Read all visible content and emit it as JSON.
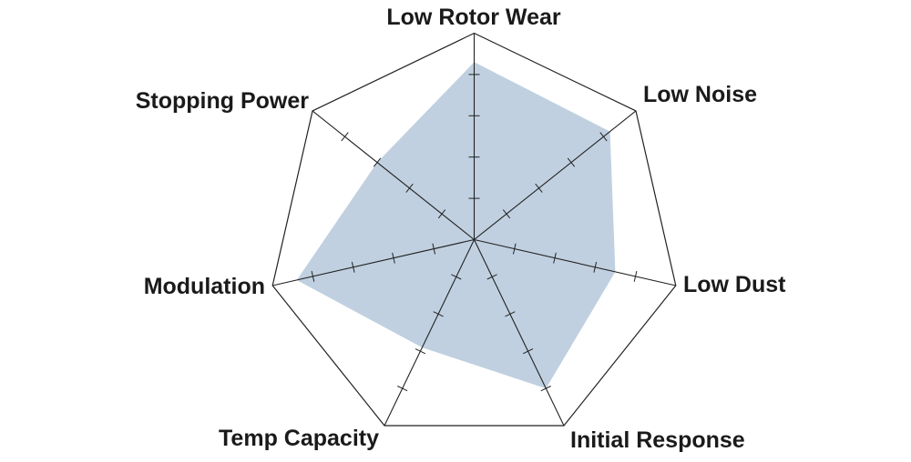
{
  "chart_data": {
    "type": "radar",
    "title": "",
    "axes": [
      "Low Rotor Wear",
      "Low Noise",
      "Low Dust",
      "Initial Response",
      "Temp Capacity",
      "Modulation",
      "Stopping Power"
    ],
    "range": [
      0,
      5
    ],
    "ticks": [
      1,
      2,
      3,
      4,
      5
    ],
    "tick_labels_shown": false,
    "grid": "heptagon outline with tick marks on spokes",
    "series": [
      {
        "values": [
          4.3,
          4.2,
          3.5,
          4.0,
          2.9,
          4.4,
          3.0
        ],
        "fill": "#c0d0e0"
      }
    ],
    "colors": {
      "fill": "#c0d0e0",
      "line": "#222222"
    }
  }
}
